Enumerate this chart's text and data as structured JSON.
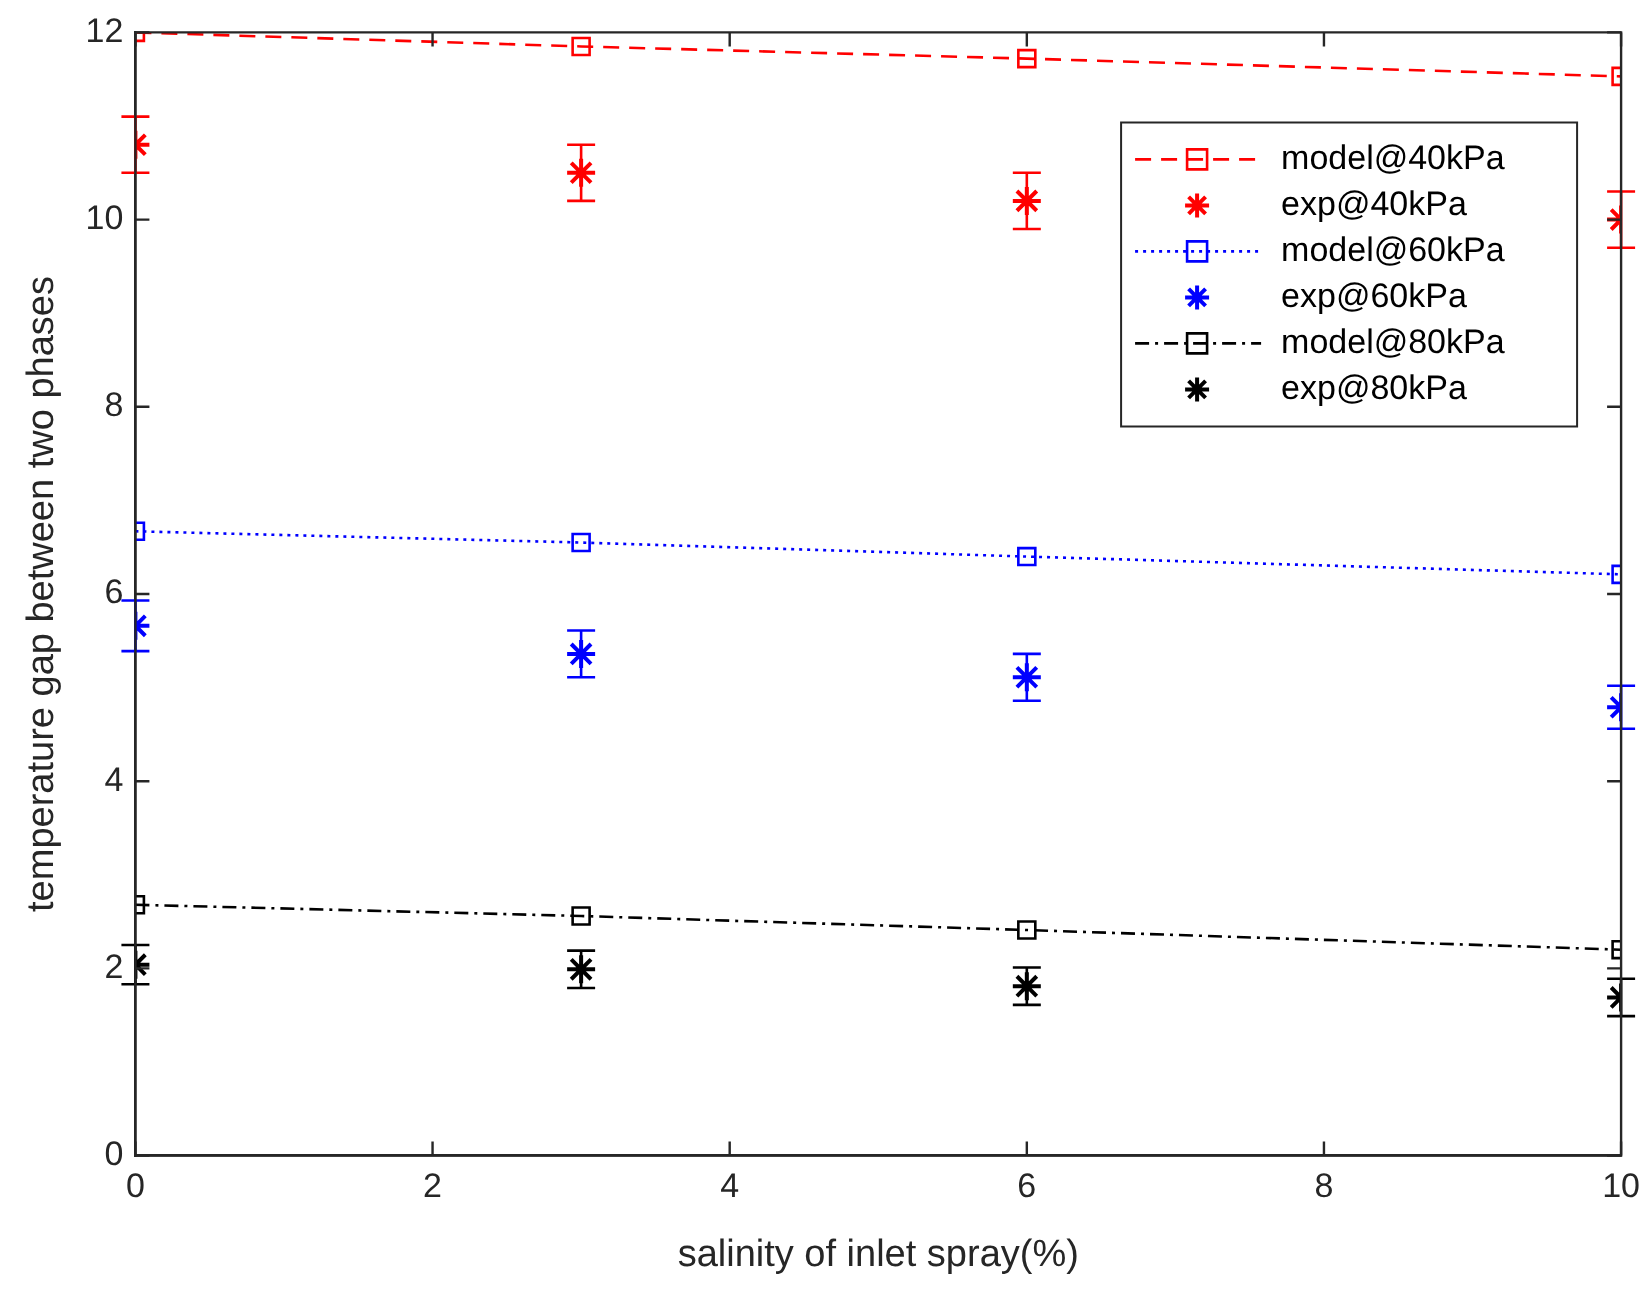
{
  "chart_data": {
    "type": "line",
    "xlabel": "salinity of inlet spray(%)",
    "ylabel": "temperature gap between two phases",
    "x": [
      0,
      3,
      6,
      10
    ],
    "xlim": [
      0,
      10
    ],
    "xticks": [
      0,
      2,
      4,
      6,
      8,
      10
    ],
    "ylim": [
      0,
      12
    ],
    "yticks": [
      0,
      2,
      4,
      6,
      8,
      10,
      12
    ],
    "grid": false,
    "legend": "top right",
    "series": [
      {
        "name": "model@40kPa",
        "type": "line",
        "color": "#ff0000",
        "marker": "square",
        "line_style": "dashed",
        "values": [
          12.0,
          11.85,
          11.72,
          11.53
        ]
      },
      {
        "name": "exp@40kPa",
        "type": "scatter",
        "color": "#ff0000",
        "marker": "cross",
        "values": [
          10.8,
          10.5,
          10.2,
          10.0
        ],
        "errors": [
          0.3,
          0.3,
          0.3,
          0.3
        ]
      },
      {
        "name": "model@60kPa",
        "type": "line",
        "color": "#0000ff",
        "marker": "square",
        "line_style": "dotted",
        "values": [
          6.67,
          6.55,
          6.4,
          6.21
        ]
      },
      {
        "name": "exp@60kPa",
        "type": "scatter",
        "color": "#0000ff",
        "marker": "cross",
        "values": [
          5.66,
          5.36,
          5.11,
          4.79
        ],
        "errors": [
          0.27,
          0.25,
          0.25,
          0.23
        ]
      },
      {
        "name": "model@80kPa",
        "type": "line",
        "color": "#000000",
        "marker": "square",
        "line_style": "dashdot",
        "values": [
          2.68,
          2.56,
          2.41,
          2.2
        ]
      },
      {
        "name": "exp@80kPa",
        "type": "scatter",
        "color": "#000000",
        "marker": "cross",
        "values": [
          2.04,
          1.99,
          1.81,
          1.69
        ],
        "errors": [
          0.21,
          0.2,
          0.2,
          0.2
        ]
      }
    ]
  }
}
